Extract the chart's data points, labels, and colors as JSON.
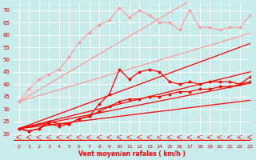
{
  "x": [
    0,
    1,
    2,
    3,
    4,
    5,
    6,
    7,
    8,
    9,
    10,
    11,
    12,
    13,
    14,
    15,
    16,
    17,
    18,
    19,
    20,
    21,
    22,
    23
  ],
  "line_salmon_jagged": [
    33,
    38,
    42,
    44,
    46,
    51,
    57,
    61,
    64,
    66,
    71,
    67,
    70,
    68,
    65,
    65,
    62,
    70,
    63,
    63,
    62,
    63,
    63,
    68
  ],
  "line_salmon_straight1": [
    33,
    35.4,
    37.8,
    40.2,
    42.6,
    45,
    47.4,
    49.8,
    52.2,
    54.6,
    57,
    59.4,
    61.8,
    64.2,
    66.6,
    69,
    71.4,
    73.8,
    76.2,
    78.6,
    81,
    83.4,
    85.8,
    88.2
  ],
  "line_salmon_straight2": [
    33,
    34.2,
    35.4,
    36.6,
    37.8,
    39,
    40.2,
    41.4,
    42.6,
    43.8,
    45,
    46.2,
    47.4,
    48.6,
    49.8,
    51,
    52.2,
    53.4,
    54.6,
    55.8,
    57,
    58.2,
    59.4,
    60.6
  ],
  "line_red_jagged": [
    22,
    21,
    22,
    25,
    24,
    24,
    26,
    27,
    32,
    36,
    46,
    42,
    45,
    46,
    45,
    41,
    40,
    41,
    40,
    41,
    41,
    41,
    40,
    43
  ],
  "line_red_straight1": [
    22,
    23.5,
    25,
    26.5,
    28,
    29.5,
    31,
    32.5,
    34,
    35.5,
    37,
    38.5,
    40,
    41.5,
    43,
    44.5,
    46,
    47.5,
    49,
    50.5,
    52,
    53.5,
    55,
    56.5
  ],
  "line_red_straight2": [
    22,
    23.0,
    24.0,
    25.0,
    26.0,
    27.0,
    28.0,
    29.0,
    30.0,
    31.0,
    32.0,
    33.0,
    34.0,
    35.0,
    36.0,
    37.0,
    38.0,
    39.0,
    40.0,
    41.0,
    42.0,
    43.0,
    44.0,
    45.0
  ],
  "line_red_straight3": [
    22,
    22.8,
    23.6,
    24.4,
    25.2,
    26.0,
    26.8,
    27.6,
    28.4,
    29.2,
    30.0,
    30.8,
    31.6,
    32.4,
    33.2,
    34.0,
    34.8,
    35.6,
    36.4,
    37.2,
    38.0,
    38.8,
    39.6,
    40.4
  ],
  "line_red_straight4": [
    22,
    22.5,
    23.0,
    23.5,
    24.0,
    24.5,
    25.0,
    25.5,
    26.0,
    26.5,
    27.0,
    27.5,
    28.0,
    28.5,
    29.0,
    29.5,
    30.0,
    30.5,
    31.0,
    31.5,
    32.0,
    32.5,
    33.0,
    33.5
  ],
  "line_red_with_marker": [
    22,
    21,
    22,
    24,
    23,
    24,
    26,
    27,
    29,
    31,
    33,
    34,
    34,
    35,
    35,
    36,
    37,
    37,
    38,
    38,
    39,
    39,
    40,
    41
  ],
  "background_color": "#c8ecec",
  "grid_color": "#aad4d4",
  "salmon_color": "#ff9999",
  "red_color": "#ff0000",
  "xlabel": "Vent moyen/en rafales ( km/h )",
  "ylabel_ticks": [
    20,
    25,
    30,
    35,
    40,
    45,
    50,
    55,
    60,
    65,
    70
  ],
  "ylim": [
    17,
    73
  ],
  "xlim": [
    -0.5,
    23
  ]
}
